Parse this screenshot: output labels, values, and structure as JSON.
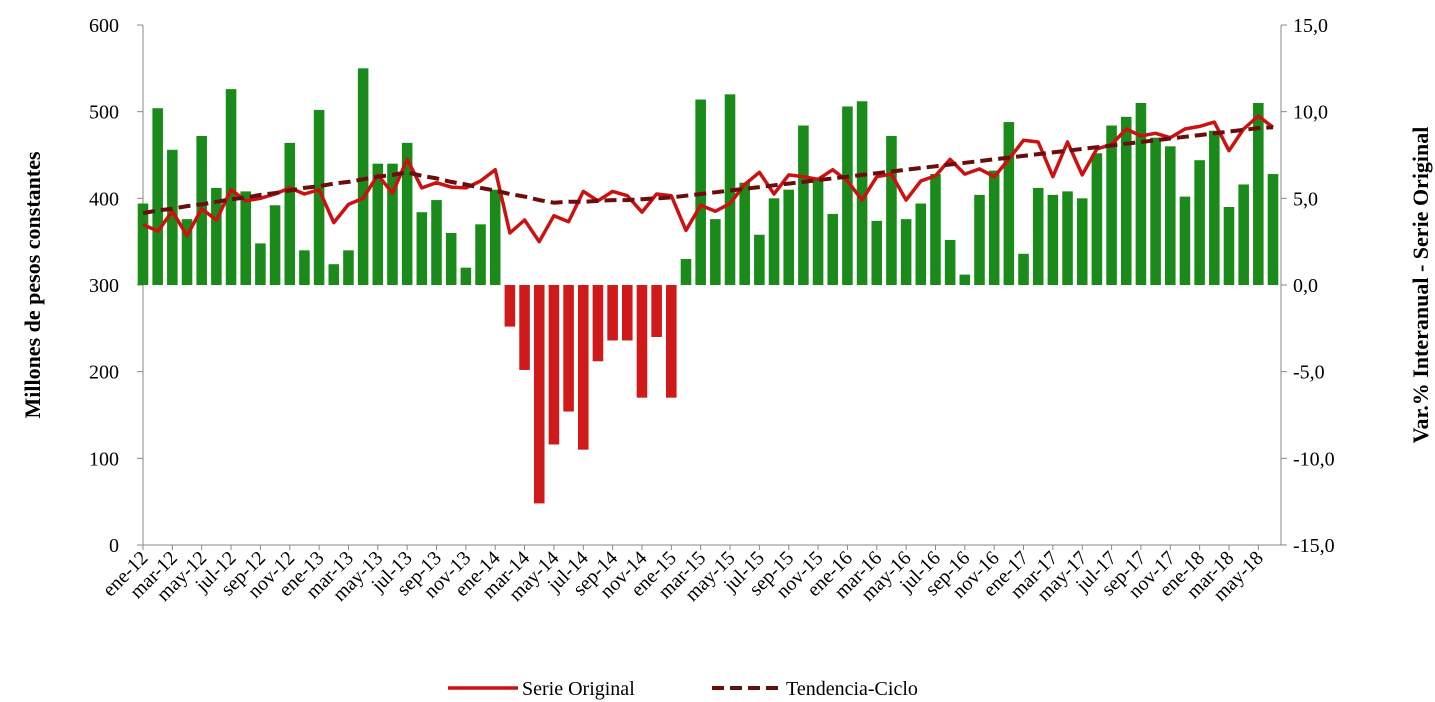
{
  "chart_data": {
    "type": "combo",
    "ylabel": "Millones de pesos constantes",
    "y2label": "Var.% Interanual - Serie Original",
    "categories": [
      "ene-12",
      null,
      "mar-12",
      null,
      "may-12",
      null,
      "jul-12",
      null,
      "sep-12",
      null,
      "nov-12",
      null,
      "ene-13",
      null,
      "mar-13",
      null,
      "may-13",
      null,
      "jul-13",
      null,
      "sep-13",
      null,
      "nov-13",
      null,
      "ene-14",
      null,
      "mar-14",
      null,
      "may-14",
      null,
      "jul-14",
      null,
      "sep-14",
      null,
      "nov-14",
      null,
      "ene-15",
      null,
      "mar-15",
      null,
      "may-15",
      null,
      "jul-15",
      null,
      "sep-15",
      null,
      "nov-15",
      null,
      "ene-16",
      null,
      "mar-16",
      null,
      "may-16",
      null,
      "jul-16",
      null,
      "sep-16",
      null,
      "nov-16",
      null,
      "ene-17",
      null,
      "mar-17",
      null,
      "may-17",
      null,
      "jul-17",
      null,
      "sep-17",
      null,
      "nov-17",
      null,
      "ene-18",
      null,
      "mar-18",
      null,
      "may-18",
      null
    ],
    "ylim": [
      0,
      600
    ],
    "yticks": [
      0,
      100,
      200,
      300,
      400,
      500,
      600
    ],
    "y2lim": [
      -15,
      15
    ],
    "y2ticks": [
      {
        "value": -15,
        "label": "-15,0"
      },
      {
        "value": -10,
        "label": "-10,0"
      },
      {
        "value": -5,
        "label": "-5,0"
      },
      {
        "value": 0,
        "label": "0,0"
      },
      {
        "value": 5,
        "label": "5,0"
      },
      {
        "value": 10,
        "label": "10,0"
      },
      {
        "value": 15,
        "label": "15,0"
      }
    ],
    "bars": {
      "axis": "y2",
      "positive_color": "#1a8a1a",
      "negative_color": "#d01a1a",
      "values": [
        4.7,
        10.2,
        7.8,
        3.8,
        8.6,
        5.6,
        11.3,
        5.4,
        2.4,
        4.6,
        8.2,
        2.0,
        10.1,
        1.2,
        2.0,
        12.5,
        7.0,
        7.0,
        8.2,
        4.2,
        4.9,
        3.0,
        1.0,
        3.5,
        5.5,
        -2.4,
        -4.9,
        -12.6,
        -9.2,
        -7.3,
        -9.5,
        -4.4,
        -3.2,
        -3.2,
        -6.5,
        -3.0,
        -6.5,
        1.5,
        10.7,
        3.8,
        11.0,
        5.9,
        2.9,
        5.0,
        5.5,
        9.2,
        6.1,
        4.1,
        10.3,
        10.6,
        3.7,
        8.6,
        3.8,
        4.7,
        6.4,
        2.6,
        0.6,
        5.2,
        6.6,
        9.4,
        1.8,
        5.6,
        5.2,
        5.4,
        5.0,
        7.6,
        9.2,
        9.7,
        10.5,
        8.5,
        8.0,
        5.1,
        7.2,
        8.9,
        4.5,
        5.8,
        10.5,
        6.4
      ]
    },
    "series": [
      {
        "name": "Serie Original",
        "color": "#cc1111",
        "dashed": false,
        "values": [
          370,
          362,
          385,
          357,
          388,
          375,
          410,
          397,
          400,
          405,
          412,
          405,
          410,
          372,
          393,
          400,
          427,
          406,
          445,
          412,
          418,
          413,
          412,
          420,
          433,
          360,
          375,
          350,
          380,
          373,
          408,
          397,
          408,
          403,
          384,
          405,
          403,
          363,
          392,
          385,
          394,
          416,
          430,
          405,
          427,
          425,
          422,
          433,
          420,
          398,
          425,
          428,
          398,
          420,
          426,
          445,
          428,
          434,
          425,
          445,
          467,
          465,
          425,
          465,
          427,
          457,
          462,
          480,
          472,
          475,
          470,
          480,
          483,
          488,
          455,
          480,
          495,
          482
        ]
      },
      {
        "name": "Tendencia-Ciclo",
        "color": "#6b0d0d",
        "dashed": true,
        "values": [
          383,
          386,
          388,
          391,
          393,
          396,
          399,
          401,
          404,
          406,
          409,
          412,
          414,
          417,
          419,
          422,
          425,
          427,
          430,
          426,
          423,
          419,
          416,
          412,
          409,
          405,
          402,
          398,
          395,
          396,
          396,
          397,
          398,
          398,
          399,
          400,
          401,
          403,
          405,
          407,
          409,
          411,
          413,
          415,
          417,
          419,
          421,
          423,
          425,
          427,
          429,
          431,
          433,
          435,
          437,
          439,
          441,
          443,
          445,
          447,
          449,
          451,
          453,
          455,
          457,
          459,
          461,
          463,
          465,
          467,
          469,
          471,
          473,
          475,
          477,
          479,
          481,
          482
        ]
      }
    ]
  }
}
